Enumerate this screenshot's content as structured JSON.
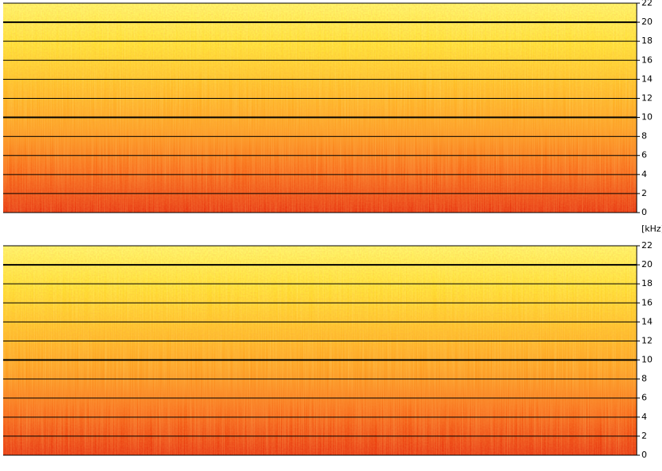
{
  "chart_data": [
    {
      "type": "spectrogram",
      "ylim": [
        0,
        22
      ],
      "yticks": [
        0,
        2,
        4,
        6,
        8,
        10,
        12,
        14,
        16,
        18,
        20,
        22
      ],
      "major_ticks": [
        10,
        20
      ],
      "grid": true,
      "colormap": [
        "#e62808",
        "#f86414",
        "#fd9a1c",
        "#ffbc22",
        "#ffe030",
        "#fff668"
      ]
    },
    {
      "type": "spectrogram",
      "y_label": "[kHz]",
      "ylim": [
        0,
        22
      ],
      "yticks": [
        0,
        2,
        4,
        6,
        8,
        10,
        12,
        14,
        16,
        18,
        20,
        22
      ],
      "major_ticks": [
        10,
        20
      ],
      "grid": true,
      "colormap": [
        "#e62808",
        "#f86414",
        "#fd9a1c",
        "#ffbc22",
        "#ffe030",
        "#fff668"
      ]
    }
  ]
}
